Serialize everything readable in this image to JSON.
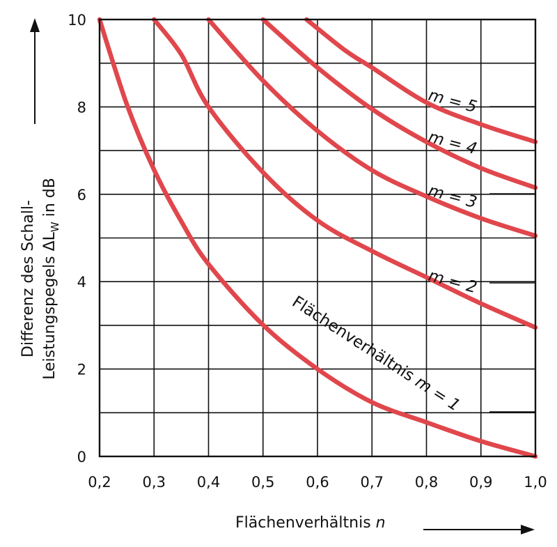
{
  "chart_data": {
    "type": "line",
    "x": [
      0.2,
      0.3,
      0.4,
      0.5,
      0.6,
      0.7,
      0.8,
      0.9,
      1.0
    ],
    "xlim": [
      0.2,
      1.0
    ],
    "ylim": [
      0,
      10
    ],
    "x_ticks": [
      "0,2",
      "0,3",
      "0,4",
      "0,5",
      "0,6",
      "0,7",
      "0,8",
      "0,9",
      "1,0"
    ],
    "y_ticks": [
      "0",
      "2",
      "4",
      "6",
      "8",
      "10"
    ],
    "xlabel": "Flächenverhältnis n",
    "xlabel_main": "Flächenverhältnis",
    "xlabel_var": "n",
    "ylabel_line1": "Differenz des Schall-",
    "ylabel_line2": "Leistungspegels ΔL",
    "ylabel_sub": "W",
    "ylabel_unit": " in dB",
    "grid": true,
    "series": [
      {
        "name": "Flächenverhältnis m = 1",
        "label_text": "Flächenverhältnis",
        "label_var": "m = 1",
        "color": "#e0474c",
        "points": [
          [
            0.2,
            10
          ],
          [
            0.25,
            8.06
          ],
          [
            0.3,
            6.56
          ],
          [
            0.35,
            5.38
          ],
          [
            0.4,
            4.4
          ],
          [
            0.5,
            3.01
          ],
          [
            0.6,
            2.0
          ],
          [
            0.7,
            1.24
          ],
          [
            0.8,
            0.78
          ],
          [
            0.9,
            0.35
          ],
          [
            1.0,
            0.0
          ]
        ]
      },
      {
        "name": "m = 2",
        "label_text": "m = 2",
        "color": "#e0474c",
        "points": [
          [
            0.3,
            10
          ],
          [
            0.35,
            9.2
          ],
          [
            0.4,
            8.0
          ],
          [
            0.5,
            6.5
          ],
          [
            0.6,
            5.4
          ],
          [
            0.7,
            4.7
          ],
          [
            0.8,
            4.1
          ],
          [
            0.9,
            3.5
          ],
          [
            1.0,
            2.95
          ]
        ]
      },
      {
        "name": "m = 3",
        "label_text": "m = 3",
        "color": "#e0474c",
        "points": [
          [
            0.4,
            10
          ],
          [
            0.5,
            8.6
          ],
          [
            0.6,
            7.45
          ],
          [
            0.7,
            6.55
          ],
          [
            0.8,
            5.95
          ],
          [
            0.9,
            5.45
          ],
          [
            1.0,
            5.05
          ]
        ]
      },
      {
        "name": "m = 4",
        "label_text": "m = 4",
        "color": "#e0474c",
        "points": [
          [
            0.5,
            10
          ],
          [
            0.6,
            8.9
          ],
          [
            0.7,
            7.95
          ],
          [
            0.8,
            7.2
          ],
          [
            0.9,
            6.6
          ],
          [
            1.0,
            6.15
          ]
        ]
      },
      {
        "name": "m = 5",
        "label_text": "m = 5",
        "color": "#e0474c",
        "points": [
          [
            0.58,
            10
          ],
          [
            0.65,
            9.3
          ],
          [
            0.7,
            8.9
          ],
          [
            0.8,
            8.1
          ],
          [
            0.9,
            7.6
          ],
          [
            1.0,
            7.2
          ]
        ]
      }
    ]
  }
}
